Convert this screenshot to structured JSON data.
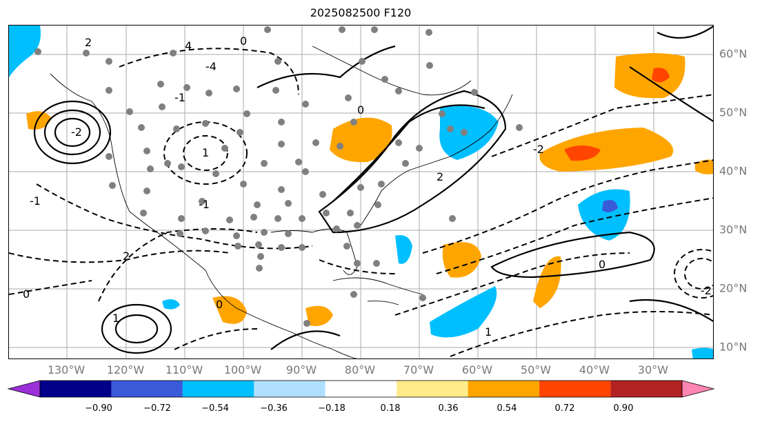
{
  "title": "2025082500 F120",
  "longitude_labels": [
    "130°W",
    "120°W",
    "110°W",
    "100°W",
    "90°W",
    "80°W",
    "70°W",
    "60°W",
    "50°W",
    "40°W",
    "30°W"
  ],
  "latitude_labels": [
    "60°N",
    "50°N",
    "40°N",
    "30°N",
    "20°N",
    "10°N"
  ],
  "colorbar": {
    "ticks": [
      "−0.90",
      "−0.72",
      "−0.54",
      "−0.36",
      "−0.18",
      "0.18",
      "0.36",
      "0.54",
      "0.72",
      "0.90"
    ],
    "colors": [
      "#9b30d9",
      "#00008b",
      "#3a5bd9",
      "#00bfff",
      "#b0e0ff",
      "#ffffff",
      "#ffeb8a",
      "#ffa500",
      "#ff4500",
      "#b22222",
      "#ff85b3"
    ]
  },
  "contour_labels": [
    "2",
    "4",
    "0",
    "-2",
    "-4",
    "-1",
    "1",
    "2",
    "0",
    "-1",
    "2",
    "0",
    "1",
    "-2",
    "1",
    "-1",
    "0",
    "0",
    "-2"
  ]
}
